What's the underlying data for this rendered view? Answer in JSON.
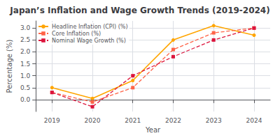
{
  "chart_data": {
    "type": "line",
    "title": "Japan’s Inflation and Wage Growth Trends (2019-2024)",
    "xlabel": "Year",
    "ylabel": "Percentage (%)",
    "x": [
      2019,
      2020,
      2021,
      2022,
      2023,
      2024
    ],
    "series": [
      {
        "name": "Headline Inflation (CPI) (%)",
        "color": "#FFA500",
        "marker": "circle",
        "line_style": "solid",
        "values": [
          0.5,
          0.05,
          0.8,
          2.5,
          3.1,
          2.7
        ]
      },
      {
        "name": "Core Inflation (%)",
        "color": "#FF6347",
        "marker": "square",
        "line_style": "dashed",
        "values": [
          0.3,
          -0.1,
          0.5,
          2.1,
          2.8,
          3.0
        ]
      },
      {
        "name": "Nominal Wage Growth (%)",
        "color": "#DC143C",
        "marker": "square",
        "line_style": "dashed",
        "values": [
          0.3,
          -0.3,
          1.0,
          1.8,
          2.5,
          3.0
        ]
      }
    ],
    "xlim": [
      2018.6,
      2024.4
    ],
    "xticks": [
      2019,
      2020,
      2021,
      2022,
      2023,
      2024
    ],
    "ylim": [
      -0.5,
      3.3
    ],
    "yticks": [
      {
        "value": 0,
        "label": "0.0"
      },
      0.5,
      {
        "value": 1,
        "label": "1.0"
      },
      1.5,
      {
        "value": 2,
        "label": "2.0"
      },
      2.5,
      {
        "value": 3,
        "label": "3.0"
      }
    ],
    "grid": true,
    "legend": "upper left"
  }
}
